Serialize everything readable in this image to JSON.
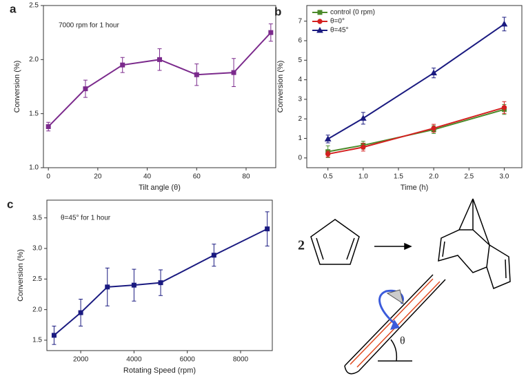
{
  "chart_data": [
    {
      "type": "line",
      "panel_label": "a",
      "annotation": "7000 rpm for 1 hour",
      "x_label": "Tilt angle (θ)",
      "y_label": "Conversion (%)",
      "x": [
        0,
        15,
        30,
        45,
        60,
        75,
        90
      ],
      "values": [
        1.38,
        1.73,
        1.95,
        2.0,
        1.86,
        1.88,
        2.25
      ],
      "errors": [
        0.04,
        0.08,
        0.07,
        0.1,
        0.1,
        0.13,
        0.08
      ],
      "color": "#7b2a8c",
      "marker": "square",
      "xlim": [
        -2,
        92
      ],
      "xticks": [
        0,
        20,
        40,
        60,
        80
      ],
      "ylim": [
        1.0,
        2.5
      ],
      "yticks": [
        {
          "value": 1.0,
          "label": "1.0"
        },
        1.5,
        {
          "value": 2.0,
          "label": "2.0"
        },
        2.5
      ]
    },
    {
      "type": "line",
      "panel_label": "b",
      "x_label": "Time (h)",
      "y_label": "Conversion (%)",
      "x": [
        0.5,
        1.0,
        2.0,
        3.0
      ],
      "series": [
        {
          "name": "control (0 rpm)",
          "color": "#4b8a2a",
          "marker": "square",
          "values": [
            0.32,
            0.65,
            1.45,
            2.48
          ],
          "errors": [
            0.3,
            0.2,
            0.2,
            0.25
          ]
        },
        {
          "name": "θ=0°",
          "color": "#d42020",
          "marker": "circle",
          "values": [
            0.2,
            0.55,
            1.52,
            2.58
          ],
          "errors": [
            0.15,
            0.2,
            0.2,
            0.3
          ]
        },
        {
          "name": "θ=45°",
          "color": "#1a1a80",
          "marker": "triangle",
          "values": [
            0.97,
            2.03,
            4.35,
            6.85
          ],
          "errors": [
            0.2,
            0.3,
            0.25,
            0.35
          ]
        }
      ],
      "legend": "upper left",
      "xlim": [
        0.2,
        3.25
      ],
      "xticks": [
        0.5,
        {
          "value": 1.0,
          "label": "1.0"
        },
        1.5,
        {
          "value": 2.0,
          "label": "2.0"
        },
        2.5,
        {
          "value": 3.0,
          "label": "3.0"
        }
      ],
      "ylim": [
        -0.5,
        7.8
      ],
      "yticks": [
        0,
        1,
        2,
        3,
        4,
        5,
        6,
        7
      ]
    },
    {
      "type": "line",
      "panel_label": "c",
      "annotation": "θ=45° for 1 hour",
      "x_label": "Rotating Speed (rpm)",
      "y_label": "Conversion (%)",
      "x": [
        1000,
        2000,
        3000,
        4000,
        5000,
        7000,
        9000
      ],
      "values": [
        1.58,
        1.95,
        2.37,
        2.4,
        2.44,
        2.89,
        3.32
      ],
      "errors": [
        0.15,
        0.22,
        0.31,
        0.26,
        0.21,
        0.18,
        0.28
      ],
      "color": "#1a1a80",
      "marker": "square",
      "xlim": [
        730,
        9190
      ],
      "xticks": [
        2000,
        4000,
        6000,
        8000
      ],
      "ylim": [
        1.33,
        3.79
      ],
      "yticks": [
        1.5,
        {
          "value": 2.0,
          "label": "2.0"
        },
        2.5,
        {
          "value": 3.0,
          "label": "3.0"
        },
        3.5
      ]
    }
  ],
  "diagram": {
    "coefficient": "2",
    "angle_label": "θ"
  }
}
